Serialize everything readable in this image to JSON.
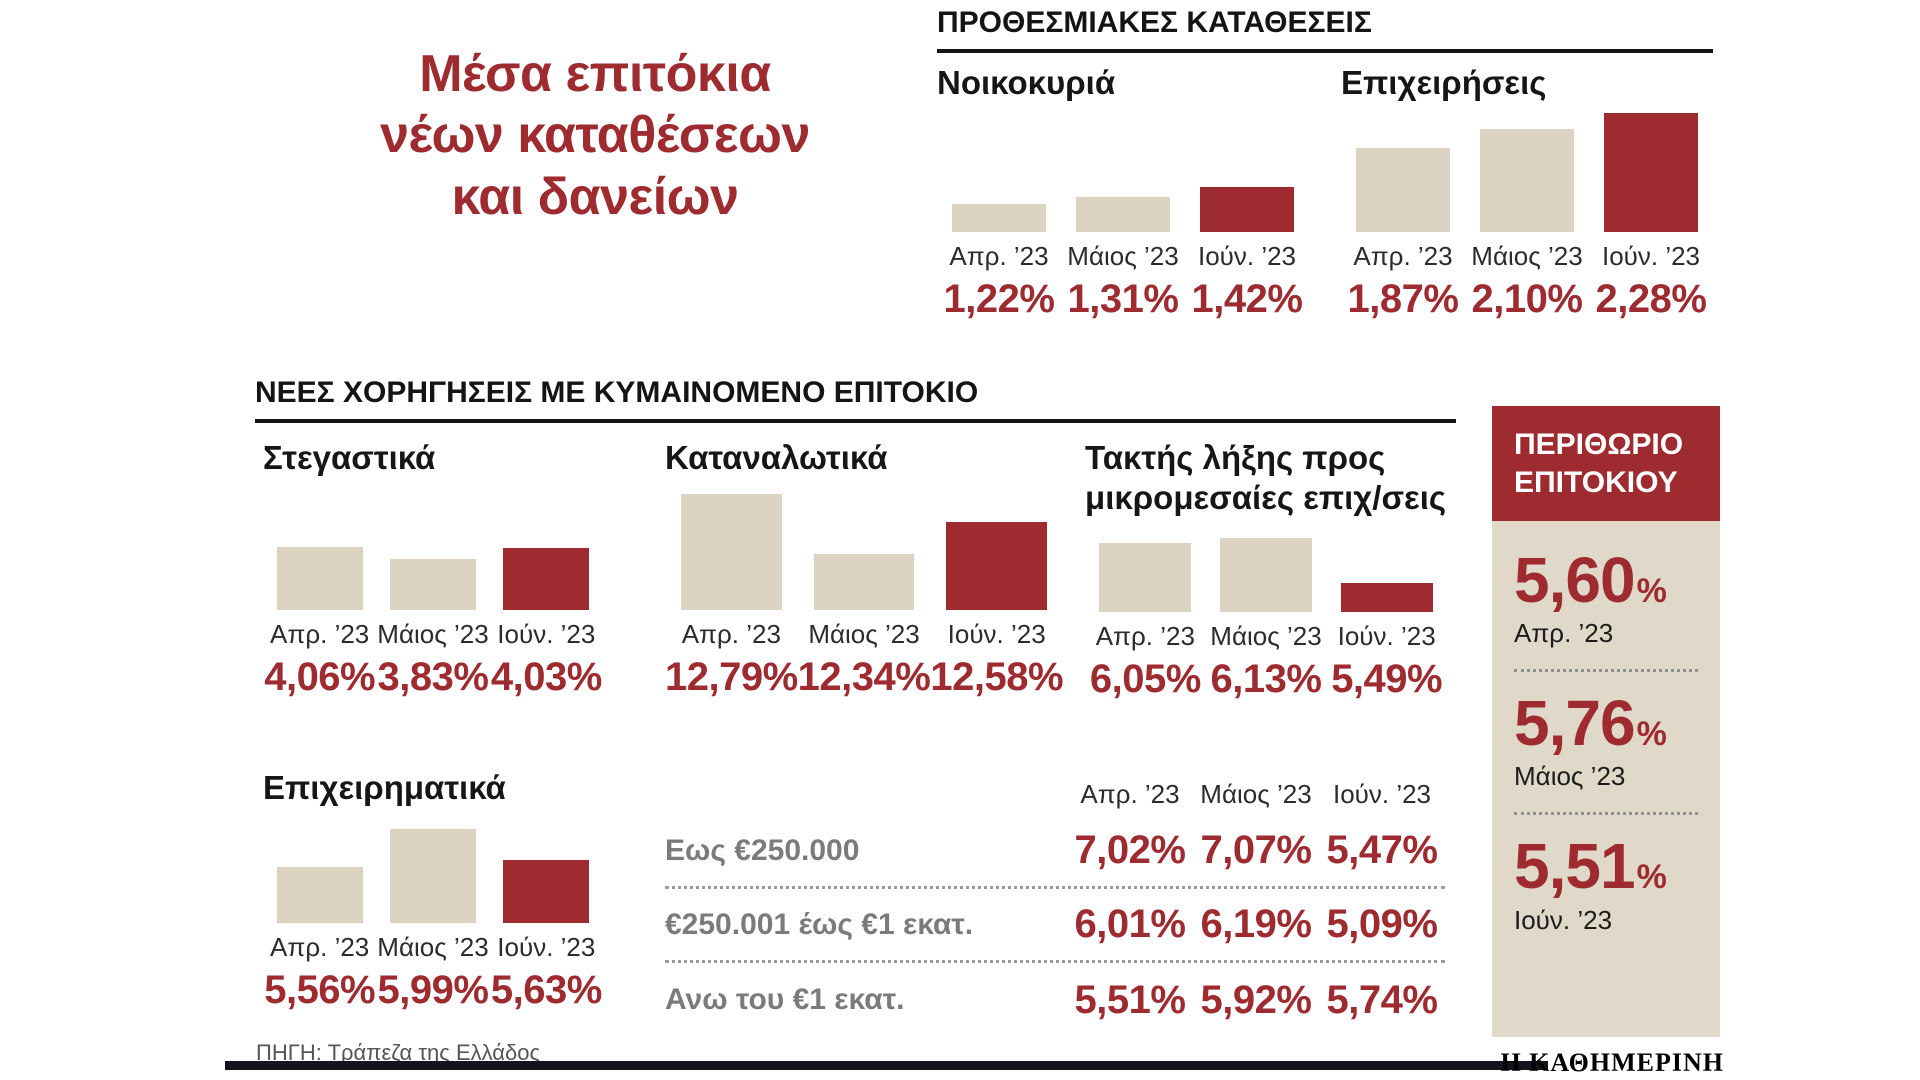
{
  "page": {
    "title": "Μέσα επιτόκια νέων καταθέσεων και δανείων",
    "source": "ΠΗΓΗ: Τράπεζα της Ελλάδος",
    "brand": "Η ΚΑΘΗΜΕΡΙΝΗ"
  },
  "colors": {
    "accent": "#9e2b30",
    "bar_beige": "#dcd3c3",
    "panel_beige": "#e0d8c8",
    "footer_bar": "#14141f"
  },
  "sections": {
    "deposits_header": "ΠΡΟΘΕΣΜΙΑΚΕΣ ΚΑΤΑΘΕΣΕΙΣ",
    "loans_header": "ΝΕΕΣ ΧΟΡΗΓΗΣΕΙΣ ΜΕ ΚΥΜΑΙΝΟΜΕΝΟ ΕΠΙΤΟΚΙΟ"
  },
  "margin_panel": {
    "title_line1": "ΠΕΡΙΘΩΡΙΟ",
    "title_line2": "ΕΠΙΤΟΚΙΟΥ",
    "entries": [
      {
        "value": "5,60",
        "unit": "%",
        "label": "Απρ. ’23"
      },
      {
        "value": "5,76",
        "unit": "%",
        "label": "Μάιος ’23"
      },
      {
        "value": "5,51",
        "unit": "%",
        "label": "Ιούν. ’23"
      }
    ]
  },
  "chart_data": [
    {
      "id": "deposits-households",
      "type": "bar",
      "title": "Νοικοκυριά",
      "categories": [
        "Απρ. ’23",
        "Μάιος ’23",
        "Ιούν. ’23"
      ],
      "values": [
        1.22,
        1.31,
        1.42
      ],
      "labels": [
        "1,22%",
        "1,31%",
        "1,42%"
      ],
      "ylim": [
        0.9,
        2.35
      ],
      "bar_colors": [
        "beige",
        "beige",
        "accent"
      ]
    },
    {
      "id": "deposits-businesses",
      "type": "bar",
      "title": "Επιχειρήσεις",
      "categories": [
        "Απρ. ’23",
        "Μάιος ’23",
        "Ιούν. ’23"
      ],
      "values": [
        1.87,
        2.1,
        2.28
      ],
      "labels": [
        "1,87%",
        "2,10%",
        "2,28%"
      ],
      "ylim": [
        0.9,
        2.35
      ],
      "bar_colors": [
        "beige",
        "beige",
        "accent"
      ]
    },
    {
      "id": "loans-mortgage",
      "type": "bar",
      "title": "Στεγαστικά",
      "categories": [
        "Απρ. ’23",
        "Μάιος ’23",
        "Ιούν. ’23"
      ],
      "values": [
        4.06,
        3.83,
        4.03
      ],
      "labels": [
        "4,06%",
        "3,83%",
        "4,03%"
      ],
      "ylim": [
        2.89,
        5.26
      ],
      "bar_colors": [
        "beige",
        "beige",
        "accent"
      ]
    },
    {
      "id": "loans-consumer",
      "type": "bar",
      "title": "Καταναλωτικά",
      "categories": [
        "Απρ. ’23",
        "Μάιος ’23",
        "Ιούν. ’23"
      ],
      "values": [
        12.79,
        12.34,
        12.58
      ],
      "labels": [
        "12,79%",
        "12,34%",
        "12,58%"
      ],
      "ylim": [
        11.92,
        12.88
      ],
      "bar_colors": [
        "beige",
        "beige",
        "accent"
      ]
    },
    {
      "id": "loans-sme",
      "type": "bar",
      "title": "Τακτής λήξης προς μικρομεσαίες επιχ/σεις",
      "categories": [
        "Απρ. ’23",
        "Μάιος ’23",
        "Ιούν. ’23"
      ],
      "values": [
        6.05,
        6.13,
        5.49
      ],
      "labels": [
        "6,05%",
        "6,13%",
        "5,49%"
      ],
      "ylim": [
        5.08,
        6.35
      ],
      "bar_colors": [
        "beige",
        "beige",
        "accent"
      ]
    },
    {
      "id": "loans-business",
      "type": "bar",
      "title": "Επιχειρηματικά",
      "categories": [
        "Απρ. ’23",
        "Μάιος ’23",
        "Ιούν. ’23"
      ],
      "values": [
        5.56,
        5.99,
        5.63
      ],
      "labels": [
        "5,56%",
        "5,99%",
        "5,63%"
      ],
      "ylim": [
        4.92,
        6.18
      ],
      "bar_colors": [
        "beige",
        "beige",
        "accent"
      ]
    },
    {
      "id": "loans-business-by-size",
      "type": "table",
      "columns": [
        "Απρ. ’23",
        "Μάιος ’23",
        "Ιούν. ’23"
      ],
      "rows": [
        {
          "label": "Εως €250.000",
          "values": [
            7.02,
            7.07,
            5.47
          ],
          "labels": [
            "7,02%",
            "7,07%",
            "5,47%"
          ]
        },
        {
          "label": "€250.001 έως €1 εκατ.",
          "values": [
            6.01,
            6.19,
            5.09
          ],
          "labels": [
            "6,01%",
            "6,19%",
            "5,09%"
          ]
        },
        {
          "label": "Ανω του €1 εκατ.",
          "values": [
            5.51,
            5.92,
            5.74
          ],
          "labels": [
            "5,51%",
            "5,92%",
            "5,74%"
          ]
        }
      ]
    },
    {
      "id": "interest-margin",
      "type": "table",
      "title": "ΠΕΡΙΘΩΡΙΟ ΕΠΙΤΟΚΙΟΥ",
      "categories": [
        "Απρ. ’23",
        "Μάιος ’23",
        "Ιούν. ’23"
      ],
      "values": [
        5.6,
        5.76,
        5.51
      ],
      "labels": [
        "5,60%",
        "5,76%",
        "5,51%"
      ]
    }
  ]
}
